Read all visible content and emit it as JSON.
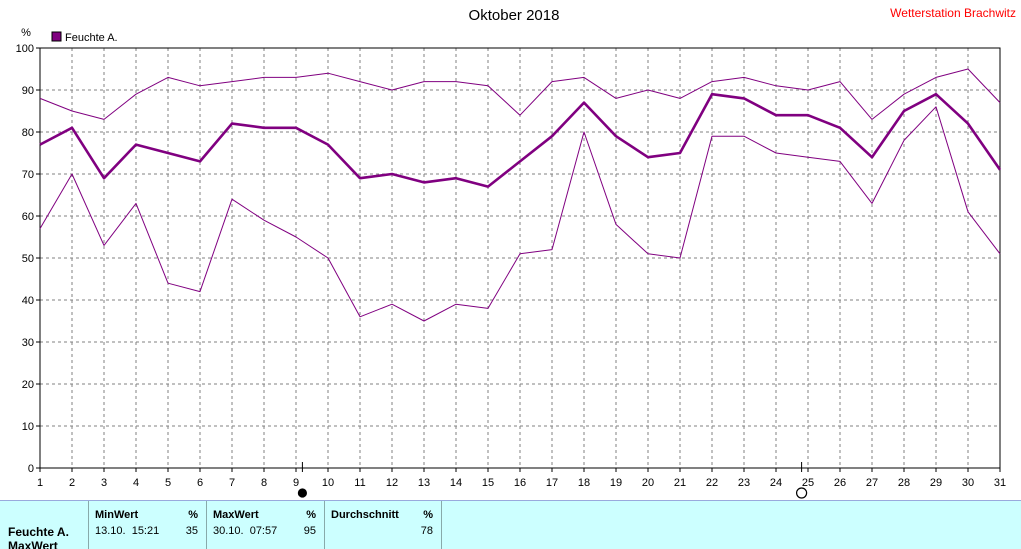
{
  "title": "Oktober 2018",
  "station": "Wetterstation Brachwitz",
  "colors": {
    "series": "#800080",
    "legend_box": "#800080",
    "station": "#ff0000",
    "panel_bg": "#ccffff",
    "grid": "#808080"
  },
  "chart_data": {
    "type": "line",
    "title": "Oktober 2018",
    "ylabel": "%",
    "ylim": [
      0,
      100
    ],
    "yticks": [
      0,
      10,
      20,
      30,
      40,
      50,
      60,
      70,
      80,
      90,
      100
    ],
    "xlim": [
      1,
      31
    ],
    "x": [
      1,
      2,
      3,
      4,
      5,
      6,
      7,
      8,
      9,
      10,
      11,
      12,
      13,
      14,
      15,
      16,
      17,
      18,
      19,
      20,
      21,
      22,
      23,
      24,
      25,
      26,
      27,
      28,
      29,
      30,
      31
    ],
    "legend": {
      "label": "Feuchte A.",
      "placement": "top-left"
    },
    "grid": true,
    "series": [
      {
        "name": "Feuchte A.",
        "role": "mean",
        "values": [
          77,
          81,
          69,
          77,
          75,
          73,
          82,
          81,
          81,
          77,
          69,
          70,
          68,
          69,
          67,
          73,
          79,
          87,
          79,
          74,
          75,
          89,
          88,
          84,
          84,
          81,
          74,
          85,
          89,
          82,
          71
        ]
      },
      {
        "role": "max",
        "values": [
          88,
          85,
          83,
          89,
          93,
          91,
          92,
          93,
          93,
          94,
          92,
          90,
          92,
          92,
          91,
          84,
          92,
          93,
          88,
          90,
          88,
          92,
          93,
          91,
          90,
          92,
          83,
          89,
          93,
          95,
          87
        ]
      },
      {
        "role": "min",
        "values": [
          57,
          70,
          53,
          63,
          44,
          42,
          64,
          59,
          55,
          50,
          36,
          39,
          35,
          39,
          38,
          51,
          52,
          80,
          58,
          51,
          50,
          79,
          79,
          75,
          74,
          73,
          63,
          78,
          86,
          61,
          51
        ]
      }
    ],
    "moon_markers": [
      {
        "day": 9.2,
        "phase": "full"
      },
      {
        "day": 24.8,
        "phase": "new"
      }
    ]
  },
  "stats": {
    "row_label_1": "Feuchte A.",
    "row_label_2": "MaxWert",
    "min": {
      "header": "MinWert",
      "unit": "%",
      "datetime": "13.10.  15:21",
      "value": "35"
    },
    "max": {
      "header": "MaxWert",
      "unit": "%",
      "datetime": "30.10.  07:57",
      "value": "95"
    },
    "avg": {
      "header": "Durchschnitt",
      "unit": "%",
      "value": "78"
    }
  }
}
